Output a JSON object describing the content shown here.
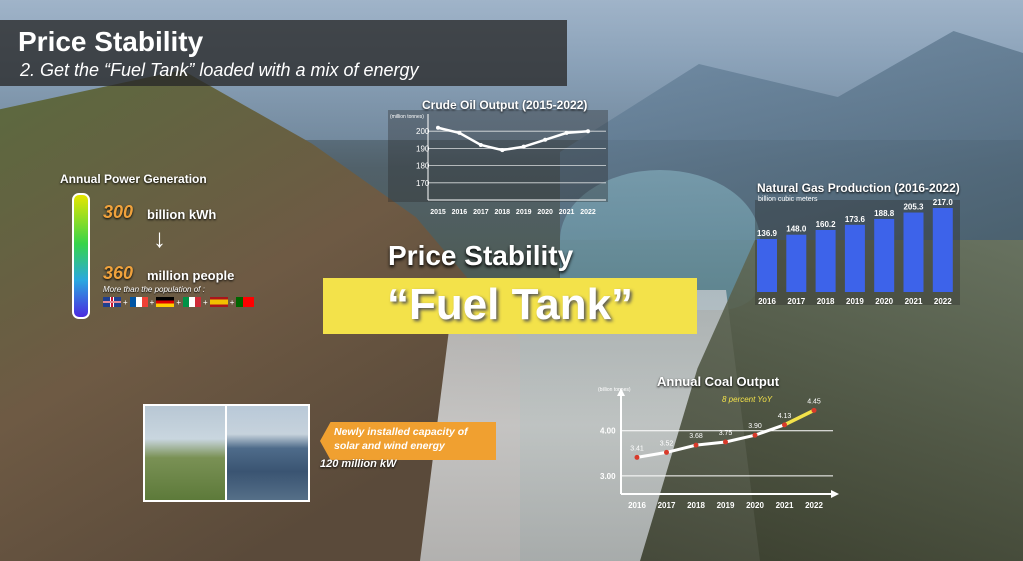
{
  "header": {
    "title": "Price Stability",
    "subtitle": "2. Get the “Fuel Tank” loaded with a mix of energy"
  },
  "center": {
    "title": "Price Stability",
    "highlight": "“Fuel Tank”"
  },
  "power": {
    "title": "Annual Power Generation",
    "value": "300",
    "unit": "billion kWh",
    "people_value": "360",
    "people_unit": "million people",
    "note": "More than the population of :",
    "flags": [
      "uk-flag",
      "france-flag",
      "germany-flag",
      "italy-flag",
      "spain-flag",
      "portugal-flag"
    ],
    "plus": "+"
  },
  "renewables": {
    "text": "Newly installed capacity of solar and wind energy",
    "capacity": "120 million kW"
  },
  "colors": {
    "accent_yellow": "#f3e24a",
    "accent_orange": "#f0a030",
    "bar_blue": "#3d63ea",
    "line_red": "#d83a2a"
  },
  "chart_data": [
    {
      "type": "line",
      "title": "Crude Oil Output (2015-2022)",
      "ylabel": "(million tonnes)",
      "x": [
        "2015",
        "2016",
        "2017",
        "2018",
        "2019",
        "2020",
        "2021",
        "2022"
      ],
      "values": [
        202,
        199,
        192,
        189,
        191,
        195,
        199,
        200
      ],
      "ylim": [
        160,
        210
      ],
      "yticks": [
        170,
        180,
        190,
        200
      ],
      "grid": true
    },
    {
      "type": "bar",
      "title": "Natural Gas Production (2016-2022)",
      "ylabel": "billion cubic meters",
      "categories": [
        "2016",
        "2017",
        "2018",
        "2019",
        "2020",
        "2021",
        "2022"
      ],
      "values": [
        136.9,
        148.0,
        160.2,
        173.6,
        188.8,
        205.3,
        217.0
      ],
      "value_labels": [
        "136.9",
        "148.0",
        "160.2",
        "173.6",
        "188.8",
        "205.3",
        "217.0"
      ]
    },
    {
      "type": "line",
      "title": "Annual Coal Output",
      "ylabel": "(billion tonnes)",
      "x": [
        "2016",
        "2017",
        "2018",
        "2019",
        "2020",
        "2021",
        "2022"
      ],
      "values": [
        3.41,
        3.52,
        3.68,
        3.75,
        3.9,
        4.13,
        4.45
      ],
      "value_labels": [
        "3.41",
        "3.52",
        "3.68",
        "3.75",
        "3.90",
        "4.13",
        "4.45"
      ],
      "yticks": [
        3.0,
        4.0
      ],
      "ytick_labels": [
        "3.00",
        "4.00"
      ],
      "ylim": [
        2.6,
        4.9
      ],
      "annotation": "8 percent YoY",
      "grid": true
    }
  ]
}
